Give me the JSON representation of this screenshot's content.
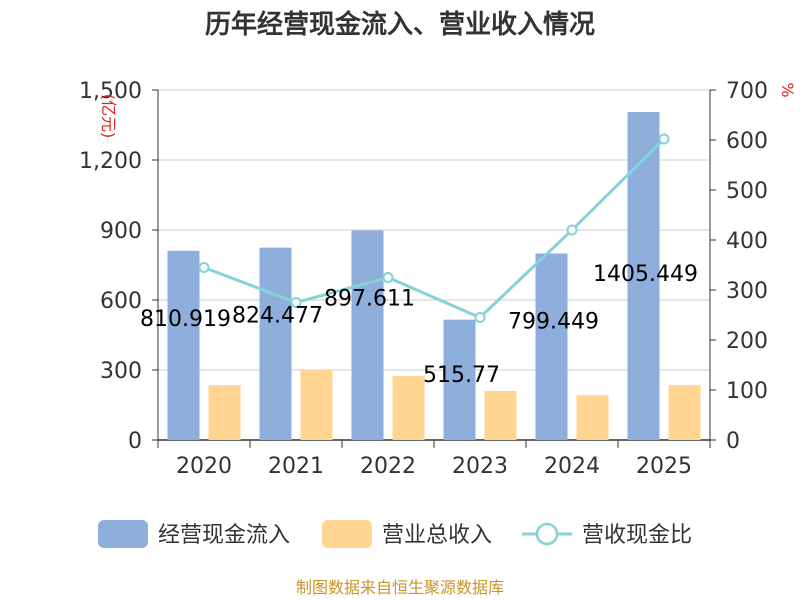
{
  "chart_data": {
    "type": "bar",
    "title": "历年经营现金流入、营业收入情况",
    "categories": [
      "2020",
      "2021",
      "2022",
      "2023",
      "2024",
      "2025"
    ],
    "series": [
      {
        "name": "经营现金流入",
        "type": "bar",
        "axis": "left",
        "color": "#8eaedc",
        "values": [
          810.919,
          824.477,
          897.611,
          515.77,
          799.449,
          1405.449
        ],
        "labels": [
          "810.919",
          "824.477",
          "897.611",
          "515.77",
          "799.449",
          "1405.449"
        ]
      },
      {
        "name": "营业总收入",
        "type": "bar",
        "axis": "left",
        "color": "#ffd591",
        "values": [
          235,
          300,
          275,
          210,
          192,
          235
        ]
      },
      {
        "name": "营收现金比",
        "type": "line",
        "axis": "right",
        "color": "#86d2d8",
        "values": [
          345,
          275,
          325,
          245,
          420,
          602
        ]
      }
    ],
    "left_axis": {
      "unit": "(亿元)",
      "ylim": [
        0,
        1500
      ],
      "ticks": [
        0,
        300,
        600,
        900,
        1200,
        1500
      ],
      "tick_labels": [
        "0",
        "300",
        "600",
        "900",
        "1,200",
        "1,500"
      ]
    },
    "right_axis": {
      "unit": "%",
      "ylim": [
        0,
        700
      ],
      "ticks": [
        0,
        100,
        200,
        300,
        400,
        500,
        600,
        700
      ],
      "tick_labels": [
        "0",
        "100",
        "200",
        "300",
        "400",
        "500",
        "600",
        "700"
      ]
    },
    "grid": true,
    "legend": "bottom"
  },
  "footer": {
    "source": "制图数据来自恒生聚源数据库"
  }
}
